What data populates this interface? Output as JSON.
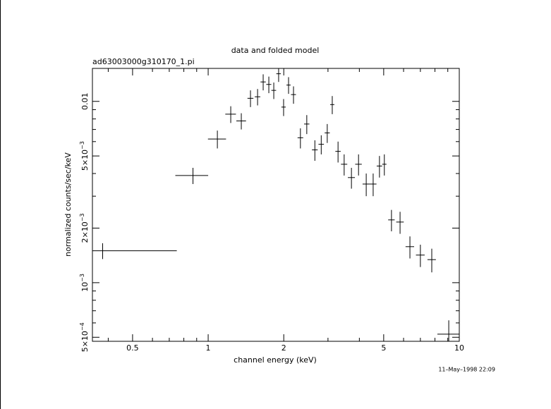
{
  "chart_data": {
    "type": "errorbar",
    "title": "data and folded model",
    "subtitle": "ad63003000g310170_1.pi",
    "xlabel": "channel energy (keV)",
    "ylabel": "normalized counts/sec/keV",
    "timestamp": "11–May–1998 22:09",
    "xlog": true,
    "ylog": true,
    "color": "#000000",
    "xlim": [
      0.346,
      10
    ],
    "ylim": [
      0.000475,
      0.0152
    ],
    "xticks": [
      0.5,
      1,
      2,
      5,
      10
    ],
    "xminorticks": [
      0.4,
      0.6,
      0.7,
      0.8,
      0.9,
      3,
      4,
      6,
      7,
      8,
      9
    ],
    "yticks": [
      {
        "value": 0.0005,
        "label": "5×10",
        "exp": "−4"
      },
      {
        "value": 0.001,
        "label": "10",
        "exp": "−3"
      },
      {
        "value": 0.002,
        "label": "2×10",
        "exp": "−3"
      },
      {
        "value": 0.005,
        "label": "5×10",
        "exp": "−3"
      },
      0.01
    ],
    "yminorticks": [
      0.0006,
      0.0007,
      0.0008,
      0.0009,
      0.003,
      0.004,
      0.006,
      0.007,
      0.008,
      0.009
    ],
    "series": [
      {
        "name": "data",
        "x": [
          0.38,
          0.87,
          1.088,
          1.23,
          1.355,
          1.474,
          1.573,
          1.656,
          1.744,
          1.825,
          1.908,
          1.997,
          2.09,
          2.187,
          2.33,
          2.47,
          2.66,
          2.82,
          2.98,
          3.12,
          3.29,
          3.48,
          3.72,
          3.97,
          4.26,
          4.54,
          4.81,
          5.03,
          5.37,
          5.81,
          6.36,
          7.0,
          7.77,
          9.08
        ],
        "xerr": [
          0.37,
          0.13,
          0.09,
          0.06,
          0.06,
          0.04,
          0.04,
          0.04,
          0.04,
          0.04,
          0.04,
          0.04,
          0.04,
          0.05,
          0.06,
          0.06,
          0.07,
          0.07,
          0.07,
          0.06,
          0.08,
          0.1,
          0.12,
          0.12,
          0.14,
          0.14,
          0.12,
          0.1,
          0.16,
          0.2,
          0.25,
          0.28,
          0.3,
          0.9
        ],
        "values": [
          0.0015,
          0.0039,
          0.0062,
          0.0085,
          0.0078,
          0.0104,
          0.0106,
          0.0128,
          0.0124,
          0.0115,
          0.0142,
          0.0093,
          0.0123,
          0.0109,
          0.0063,
          0.0075,
          0.0054,
          0.0058,
          0.0067,
          0.0096,
          0.0053,
          0.0045,
          0.0038,
          0.0045,
          0.0035,
          0.0035,
          0.0044,
          0.0045,
          0.00222,
          0.00216,
          0.00158,
          0.00142,
          0.00134,
          0.00052
        ],
        "yerr": [
          0.00015,
          0.0004,
          0.0007,
          0.0009,
          0.0008,
          0.0011,
          0.0011,
          0.0013,
          0.0013,
          0.0012,
          0.0014,
          0.001,
          0.0013,
          0.0012,
          0.0008,
          0.0009,
          0.0007,
          0.0007,
          0.0008,
          0.0011,
          0.0007,
          0.0006,
          0.0005,
          0.0006,
          0.0005,
          0.0005,
          0.0006,
          0.0006,
          0.0003,
          0.0003,
          0.00022,
          0.0002,
          0.0002,
          0.0001
        ]
      }
    ]
  }
}
